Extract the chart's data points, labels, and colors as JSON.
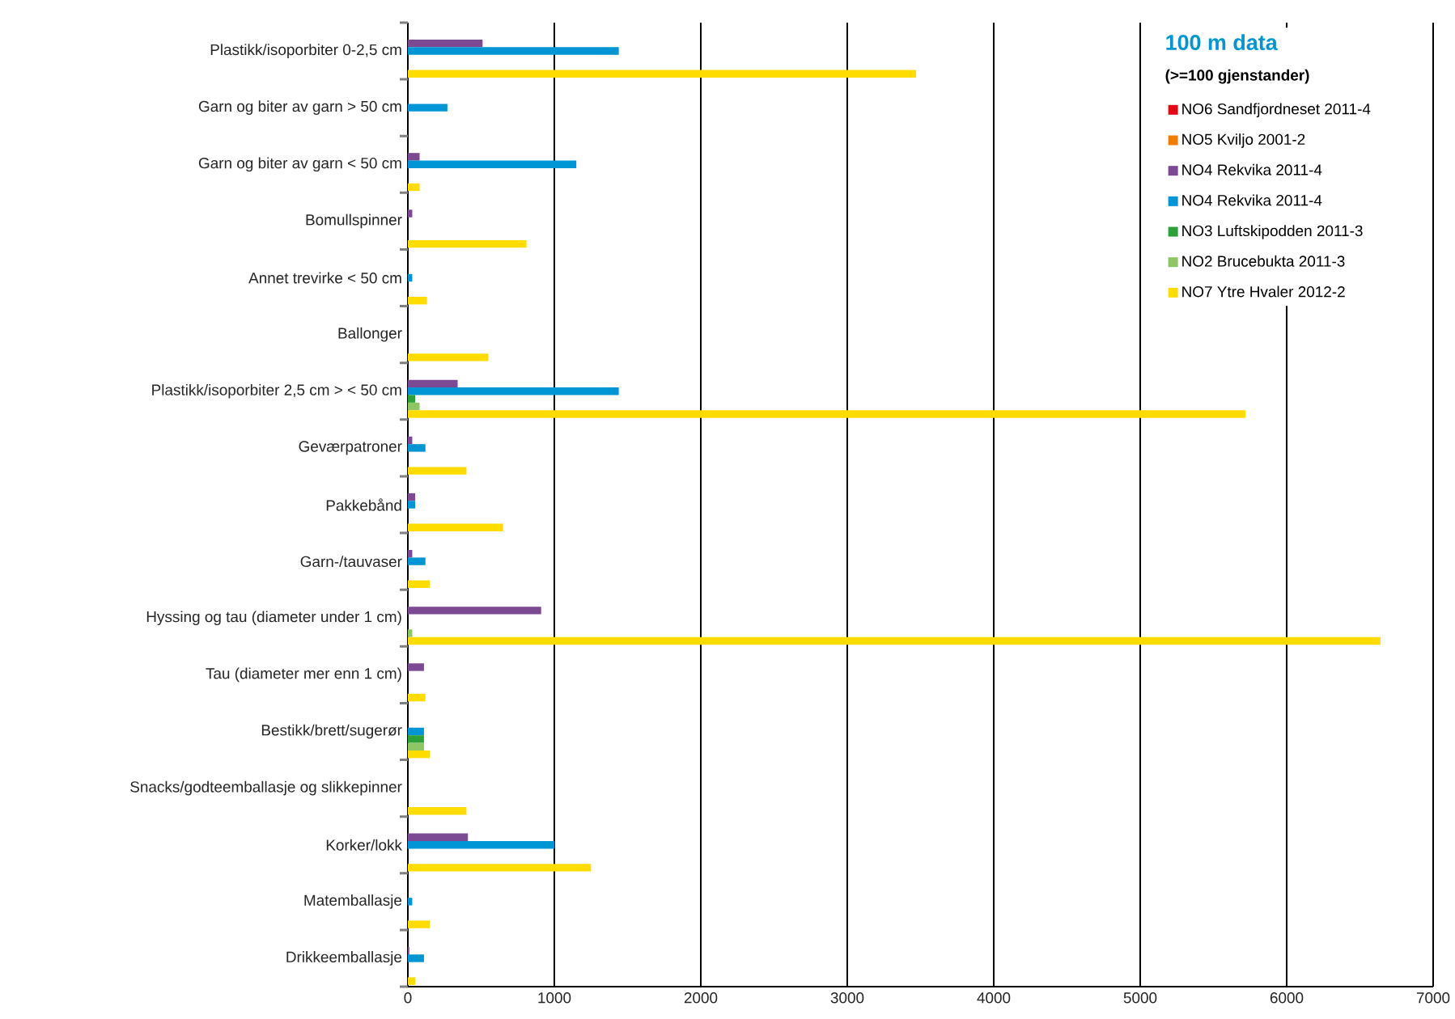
{
  "chart_data": {
    "type": "bar",
    "orientation": "horizontal",
    "title": "100 m data",
    "subtitle": "(>=100 gjenstander)",
    "categories": [
      "Plastikk/isoporbiter 0-2,5 cm",
      "Garn og biter av garn > 50 cm",
      "Garn og biter av garn < 50 cm",
      "Bomullspinner",
      "Annet trevirke < 50 cm",
      "Ballonger",
      "Plastikk/isoporbiter 2,5 cm > < 50 cm",
      "Geværpatroner",
      "Pakkebånd",
      "Garn-/tauvaser",
      "Hyssing og tau (diameter under 1 cm)",
      "Tau (diameter mer enn 1 cm)",
      "Bestikk/brett/sugerør",
      "Snacks/godteemballasje og slikkepinner",
      "Korker/lokk",
      "Matemballasje",
      "Drikkeemballasje"
    ],
    "series": [
      {
        "name": "NO6 Sandfjordneset 2011-4",
        "color": "#e30613",
        "values": [
          null,
          null,
          null,
          null,
          null,
          null,
          null,
          null,
          null,
          null,
          null,
          null,
          null,
          null,
          null,
          null,
          null
        ]
      },
      {
        "name": "NO5 Kviljo 2001-2",
        "color": "#f07d00",
        "values": [
          null,
          null,
          null,
          null,
          null,
          null,
          null,
          null,
          null,
          null,
          null,
          null,
          null,
          null,
          null,
          null,
          null
        ]
      },
      {
        "name": "NO4 Rekvika 2011-4",
        "color": "#7b4a92",
        "values": [
          510,
          null,
          80,
          30,
          null,
          null,
          340,
          30,
          50,
          30,
          910,
          110,
          null,
          null,
          410,
          null,
          10
        ]
      },
      {
        "name": "NO4 Rekvika 2011-4",
        "color": "#0095d5",
        "values": [
          1440,
          270,
          1150,
          null,
          30,
          null,
          1440,
          120,
          50,
          120,
          null,
          null,
          110,
          null,
          1000,
          30,
          110
        ]
      },
      {
        "name": "NO3 Luftskipodden 2011-3",
        "color": "#2ca13a",
        "values": [
          null,
          null,
          null,
          null,
          null,
          null,
          50,
          null,
          null,
          null,
          null,
          null,
          110,
          null,
          null,
          null,
          null
        ]
      },
      {
        "name": "NO2 Brucebukta 2011-3",
        "color": "#8dc663",
        "values": [
          null,
          null,
          null,
          null,
          null,
          null,
          80,
          null,
          null,
          null,
          30,
          null,
          110,
          null,
          null,
          null,
          null
        ]
      },
      {
        "name": "NO7 Ytre Hvaler 2012-2",
        "color": "#ffdc00",
        "values": [
          3470,
          null,
          80,
          810,
          130,
          550,
          5720,
          400,
          650,
          150,
          6640,
          120,
          150,
          400,
          1250,
          150,
          50
        ]
      }
    ],
    "xlim": [
      0,
      7000
    ],
    "xticks": [
      0,
      1000,
      2000,
      3000,
      4000,
      5000,
      6000,
      7000
    ],
    "grid": "x",
    "legend": "top right"
  }
}
